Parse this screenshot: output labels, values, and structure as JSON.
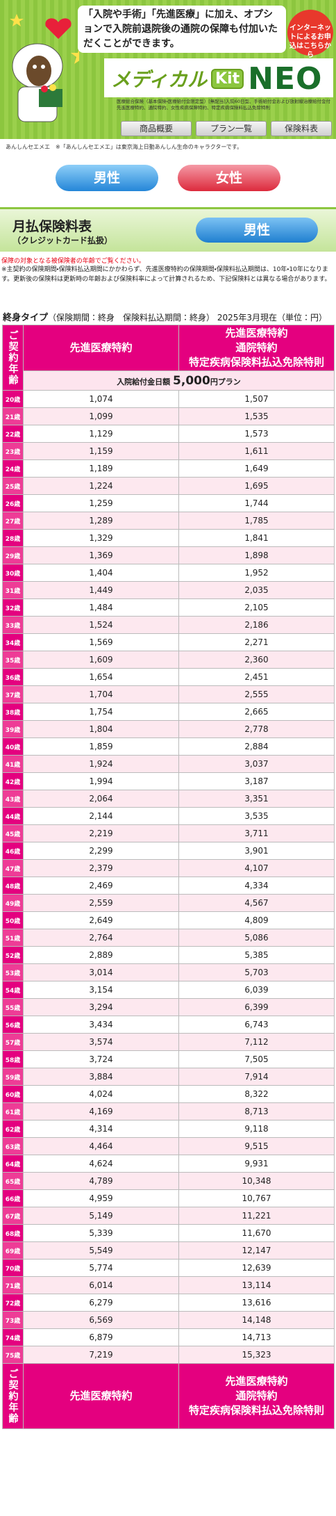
{
  "header": {
    "lead": "「入院や手術」「先進医療」に加え、オプションで入院前退院後の通院の保障も付加いただくことができます。",
    "badge": "インターネットによるお申込はこちらから",
    "logo": [
      "メディカル",
      "Kit",
      "NEO"
    ],
    "small_print": "医療総合保険（基本保険・医療給付金限定型）[無配当]入院60日型、手術給付金および放射線治療給付金付 先進医療特約、通院特約、女性疾病保障特約、特定疾病保険料払込免除特則",
    "nav": [
      "商品概要",
      "プラン一覧",
      "保険料表"
    ]
  },
  "caption": {
    "character": "あんしんセエメエ",
    "note": "※「あんしんセエメエ」は東京海上日動あんしん生命のキャラクターです。"
  },
  "gender_buttons": [
    "男性",
    "女性"
  ],
  "section": {
    "title": "月払保険料表",
    "subtitle": "（クレジットカード払扱）",
    "selected": "男性"
  },
  "notes": {
    "warning": "保障の対象となる被保険者の年齢でご覧ください。",
    "detail": "※主契約の保険期間・保険料払込期間にかかわらず、先進医療特約の保険期間・保険料払込期間は、10年・10年になります。更新後の保険料は更新時の年齢および保険料率によって計算されるため、下記保険料とは異なる場合があります。"
  },
  "table": {
    "title": [
      "終身タイプ",
      "（保険期間：終身　保険料払込期間：終身）",
      "2025年3月現在（単位：円）"
    ],
    "headers": {
      "age": "ご契約年齢",
      "col1": "先進医療特約",
      "col2": [
        "先進医療特約",
        "通院特約",
        "特定疾病保険料払込免除特則"
      ]
    },
    "plan": [
      "入院給付金日額",
      "5,000",
      "円プラン"
    ],
    "rows": [
      [
        "20歳",
        "1,074",
        "1,507"
      ],
      [
        "21歳",
        "1,099",
        "1,535"
      ],
      [
        "22歳",
        "1,129",
        "1,573"
      ],
      [
        "23歳",
        "1,159",
        "1,611"
      ],
      [
        "24歳",
        "1,189",
        "1,649"
      ],
      [
        "25歳",
        "1,224",
        "1,695"
      ],
      [
        "26歳",
        "1,259",
        "1,744"
      ],
      [
        "27歳",
        "1,289",
        "1,785"
      ],
      [
        "28歳",
        "1,329",
        "1,841"
      ],
      [
        "29歳",
        "1,369",
        "1,898"
      ],
      [
        "30歳",
        "1,404",
        "1,952"
      ],
      [
        "31歳",
        "1,449",
        "2,035"
      ],
      [
        "32歳",
        "1,484",
        "2,105"
      ],
      [
        "33歳",
        "1,524",
        "2,186"
      ],
      [
        "34歳",
        "1,569",
        "2,271"
      ],
      [
        "35歳",
        "1,609",
        "2,360"
      ],
      [
        "36歳",
        "1,654",
        "2,451"
      ],
      [
        "37歳",
        "1,704",
        "2,555"
      ],
      [
        "38歳",
        "1,754",
        "2,665"
      ],
      [
        "39歳",
        "1,804",
        "2,778"
      ],
      [
        "40歳",
        "1,859",
        "2,884"
      ],
      [
        "41歳",
        "1,924",
        "3,037"
      ],
      [
        "42歳",
        "1,994",
        "3,187"
      ],
      [
        "43歳",
        "2,064",
        "3,351"
      ],
      [
        "44歳",
        "2,144",
        "3,535"
      ],
      [
        "45歳",
        "2,219",
        "3,711"
      ],
      [
        "46歳",
        "2,299",
        "3,901"
      ],
      [
        "47歳",
        "2,379",
        "4,107"
      ],
      [
        "48歳",
        "2,469",
        "4,334"
      ],
      [
        "49歳",
        "2,559",
        "4,567"
      ],
      [
        "50歳",
        "2,649",
        "4,809"
      ],
      [
        "51歳",
        "2,764",
        "5,086"
      ],
      [
        "52歳",
        "2,889",
        "5,385"
      ],
      [
        "53歳",
        "3,014",
        "5,703"
      ],
      [
        "54歳",
        "3,154",
        "6,039"
      ],
      [
        "55歳",
        "3,294",
        "6,399"
      ],
      [
        "56歳",
        "3,434",
        "6,743"
      ],
      [
        "57歳",
        "3,574",
        "7,112"
      ],
      [
        "58歳",
        "3,724",
        "7,505"
      ],
      [
        "59歳",
        "3,884",
        "7,914"
      ],
      [
        "60歳",
        "4,024",
        "8,322"
      ],
      [
        "61歳",
        "4,169",
        "8,713"
      ],
      [
        "62歳",
        "4,314",
        "9,118"
      ],
      [
        "63歳",
        "4,464",
        "9,515"
      ],
      [
        "64歳",
        "4,624",
        "9,931"
      ],
      [
        "65歳",
        "4,789",
        "10,348"
      ],
      [
        "66歳",
        "4,959",
        "10,767"
      ],
      [
        "67歳",
        "5,149",
        "11,221"
      ],
      [
        "68歳",
        "5,339",
        "11,670"
      ],
      [
        "69歳",
        "5,549",
        "12,147"
      ],
      [
        "70歳",
        "5,774",
        "12,639"
      ],
      [
        "71歳",
        "6,014",
        "13,114"
      ],
      [
        "72歳",
        "6,279",
        "13,616"
      ],
      [
        "73歳",
        "6,569",
        "14,148"
      ],
      [
        "74歳",
        "6,879",
        "14,713"
      ],
      [
        "75歳",
        "7,219",
        "15,323"
      ]
    ]
  }
}
